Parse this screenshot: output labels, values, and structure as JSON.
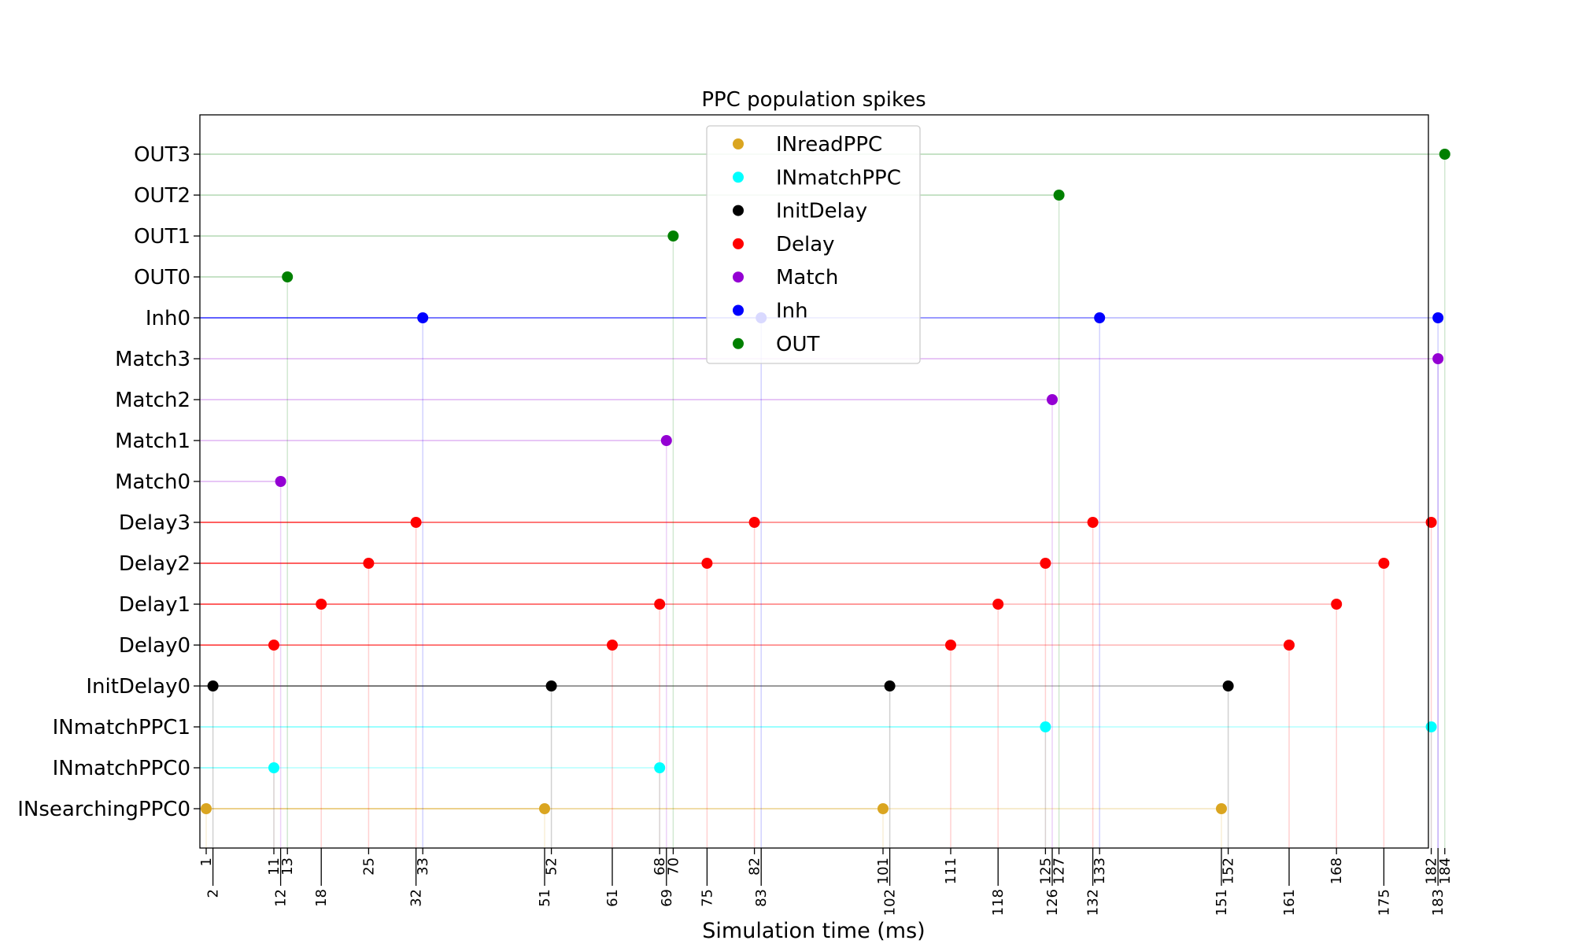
{
  "chart_data": {
    "type": "scatter",
    "title": "PPC population spikes",
    "xlabel": "Simulation time (ms)",
    "ylabel": "",
    "xlim": [
      0,
      185
    ],
    "grid": false,
    "legend_position": "top-center",
    "rows": [
      "INsearchingPPC0",
      "INmatchPPC0",
      "INmatchPPC1",
      "InitDelay0",
      "Delay0",
      "Delay1",
      "Delay2",
      "Delay3",
      "Match0",
      "Match1",
      "Match2",
      "Match3",
      "Inh0",
      "OUT0",
      "OUT1",
      "OUT2",
      "OUT3"
    ],
    "xticks_upper": [
      1,
      11,
      13,
      25,
      33,
      52,
      68,
      70,
      82,
      101,
      111,
      125,
      127,
      133,
      152,
      168,
      182,
      184
    ],
    "xticks_lower": [
      2,
      12,
      18,
      32,
      51,
      61,
      69,
      75,
      83,
      102,
      118,
      126,
      132,
      151,
      161,
      175,
      183
    ],
    "series": [
      {
        "name": "INreadPPC",
        "color": "#DAA520",
        "points": [
          {
            "row": "INsearchingPPC0",
            "x": 1
          },
          {
            "row": "INsearchingPPC0",
            "x": 51
          },
          {
            "row": "INsearchingPPC0",
            "x": 101
          },
          {
            "row": "INsearchingPPC0",
            "x": 151
          }
        ]
      },
      {
        "name": "INmatchPPC",
        "color": "#00FFFF",
        "points": [
          {
            "row": "INmatchPPC0",
            "x": 11
          },
          {
            "row": "INmatchPPC0",
            "x": 68
          },
          {
            "row": "INmatchPPC1",
            "x": 125
          },
          {
            "row": "INmatchPPC1",
            "x": 182
          }
        ]
      },
      {
        "name": "InitDelay",
        "color": "#000000",
        "points": [
          {
            "row": "InitDelay0",
            "x": 2
          },
          {
            "row": "InitDelay0",
            "x": 52
          },
          {
            "row": "InitDelay0",
            "x": 102
          },
          {
            "row": "InitDelay0",
            "x": 152
          }
        ]
      },
      {
        "name": "Delay",
        "color": "#FF0000",
        "points": [
          {
            "row": "Delay0",
            "x": 11
          },
          {
            "row": "Delay0",
            "x": 61
          },
          {
            "row": "Delay0",
            "x": 111
          },
          {
            "row": "Delay0",
            "x": 161
          },
          {
            "row": "Delay1",
            "x": 18
          },
          {
            "row": "Delay1",
            "x": 68
          },
          {
            "row": "Delay1",
            "x": 118
          },
          {
            "row": "Delay1",
            "x": 168
          },
          {
            "row": "Delay2",
            "x": 25
          },
          {
            "row": "Delay2",
            "x": 75
          },
          {
            "row": "Delay2",
            "x": 125
          },
          {
            "row": "Delay2",
            "x": 175
          },
          {
            "row": "Delay3",
            "x": 32
          },
          {
            "row": "Delay3",
            "x": 82
          },
          {
            "row": "Delay3",
            "x": 132
          },
          {
            "row": "Delay3",
            "x": 182
          }
        ]
      },
      {
        "name": "Match",
        "color": "#9400D3",
        "points": [
          {
            "row": "Match0",
            "x": 12
          },
          {
            "row": "Match1",
            "x": 69
          },
          {
            "row": "Match2",
            "x": 126
          },
          {
            "row": "Match3",
            "x": 183
          }
        ]
      },
      {
        "name": "Inh",
        "color": "#0000FF",
        "points": [
          {
            "row": "Inh0",
            "x": 33
          },
          {
            "row": "Inh0",
            "x": 83
          },
          {
            "row": "Inh0",
            "x": 133
          },
          {
            "row": "Inh0",
            "x": 183
          }
        ]
      },
      {
        "name": "OUT",
        "color": "#008000",
        "points": [
          {
            "row": "OUT0",
            "x": 13
          },
          {
            "row": "OUT1",
            "x": 70
          },
          {
            "row": "OUT2",
            "x": 127
          },
          {
            "row": "OUT3",
            "x": 184
          }
        ]
      }
    ]
  }
}
